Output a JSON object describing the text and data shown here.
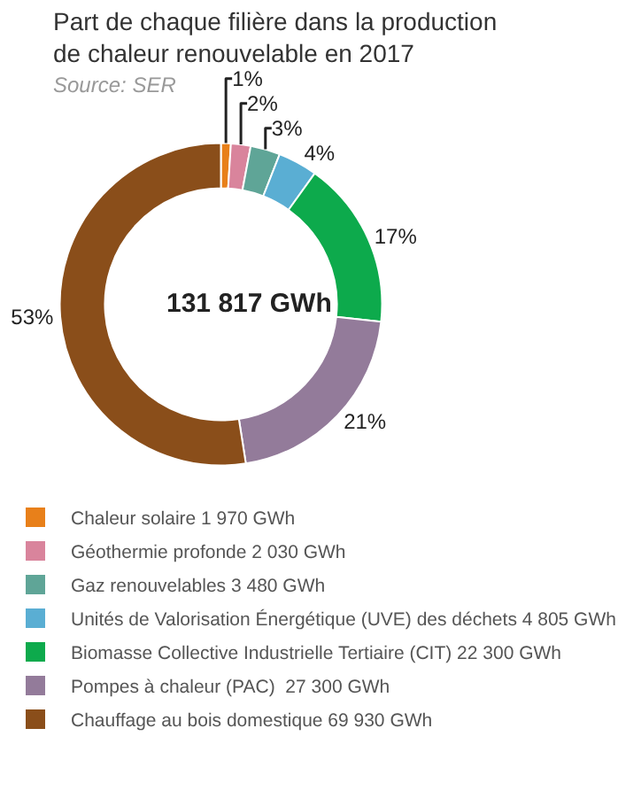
{
  "chart_data": {
    "type": "donut",
    "title": "Part de chaque filière dans la production\nde chaleur renouvelable en 2017",
    "subtitle": "Source: SER",
    "categories": [
      "Chaleur solaire 1 970 GWh",
      "Géothermie profonde 2 030 GWh",
      "Gaz renouvelables 3 480 GWh",
      "Unités de Valorisation Énergétique (UVE) des déchets 4 805 GWh",
      "Biomasse Collective Industrielle Tertiaire (CIT) 22 300 GWh",
      "Pompes à chaleur (PAC)  27 300 GWh",
      "Chauffage au bois domestique 69 930 GWh"
    ],
    "values": [
      1,
      2,
      3,
      4,
      17,
      21,
      53
    ],
    "value_labels": [
      "1%",
      "2%",
      "3%",
      "4%",
      "17%",
      "21%",
      "53%"
    ],
    "colors": [
      "#e8801a",
      "#d9849c",
      "#5fa597",
      "#5aaed3",
      "#0daa4c",
      "#937b9a",
      "#8a4e1a"
    ],
    "annotations": [
      "131 817 GWh"
    ],
    "legend": "bottom"
  }
}
